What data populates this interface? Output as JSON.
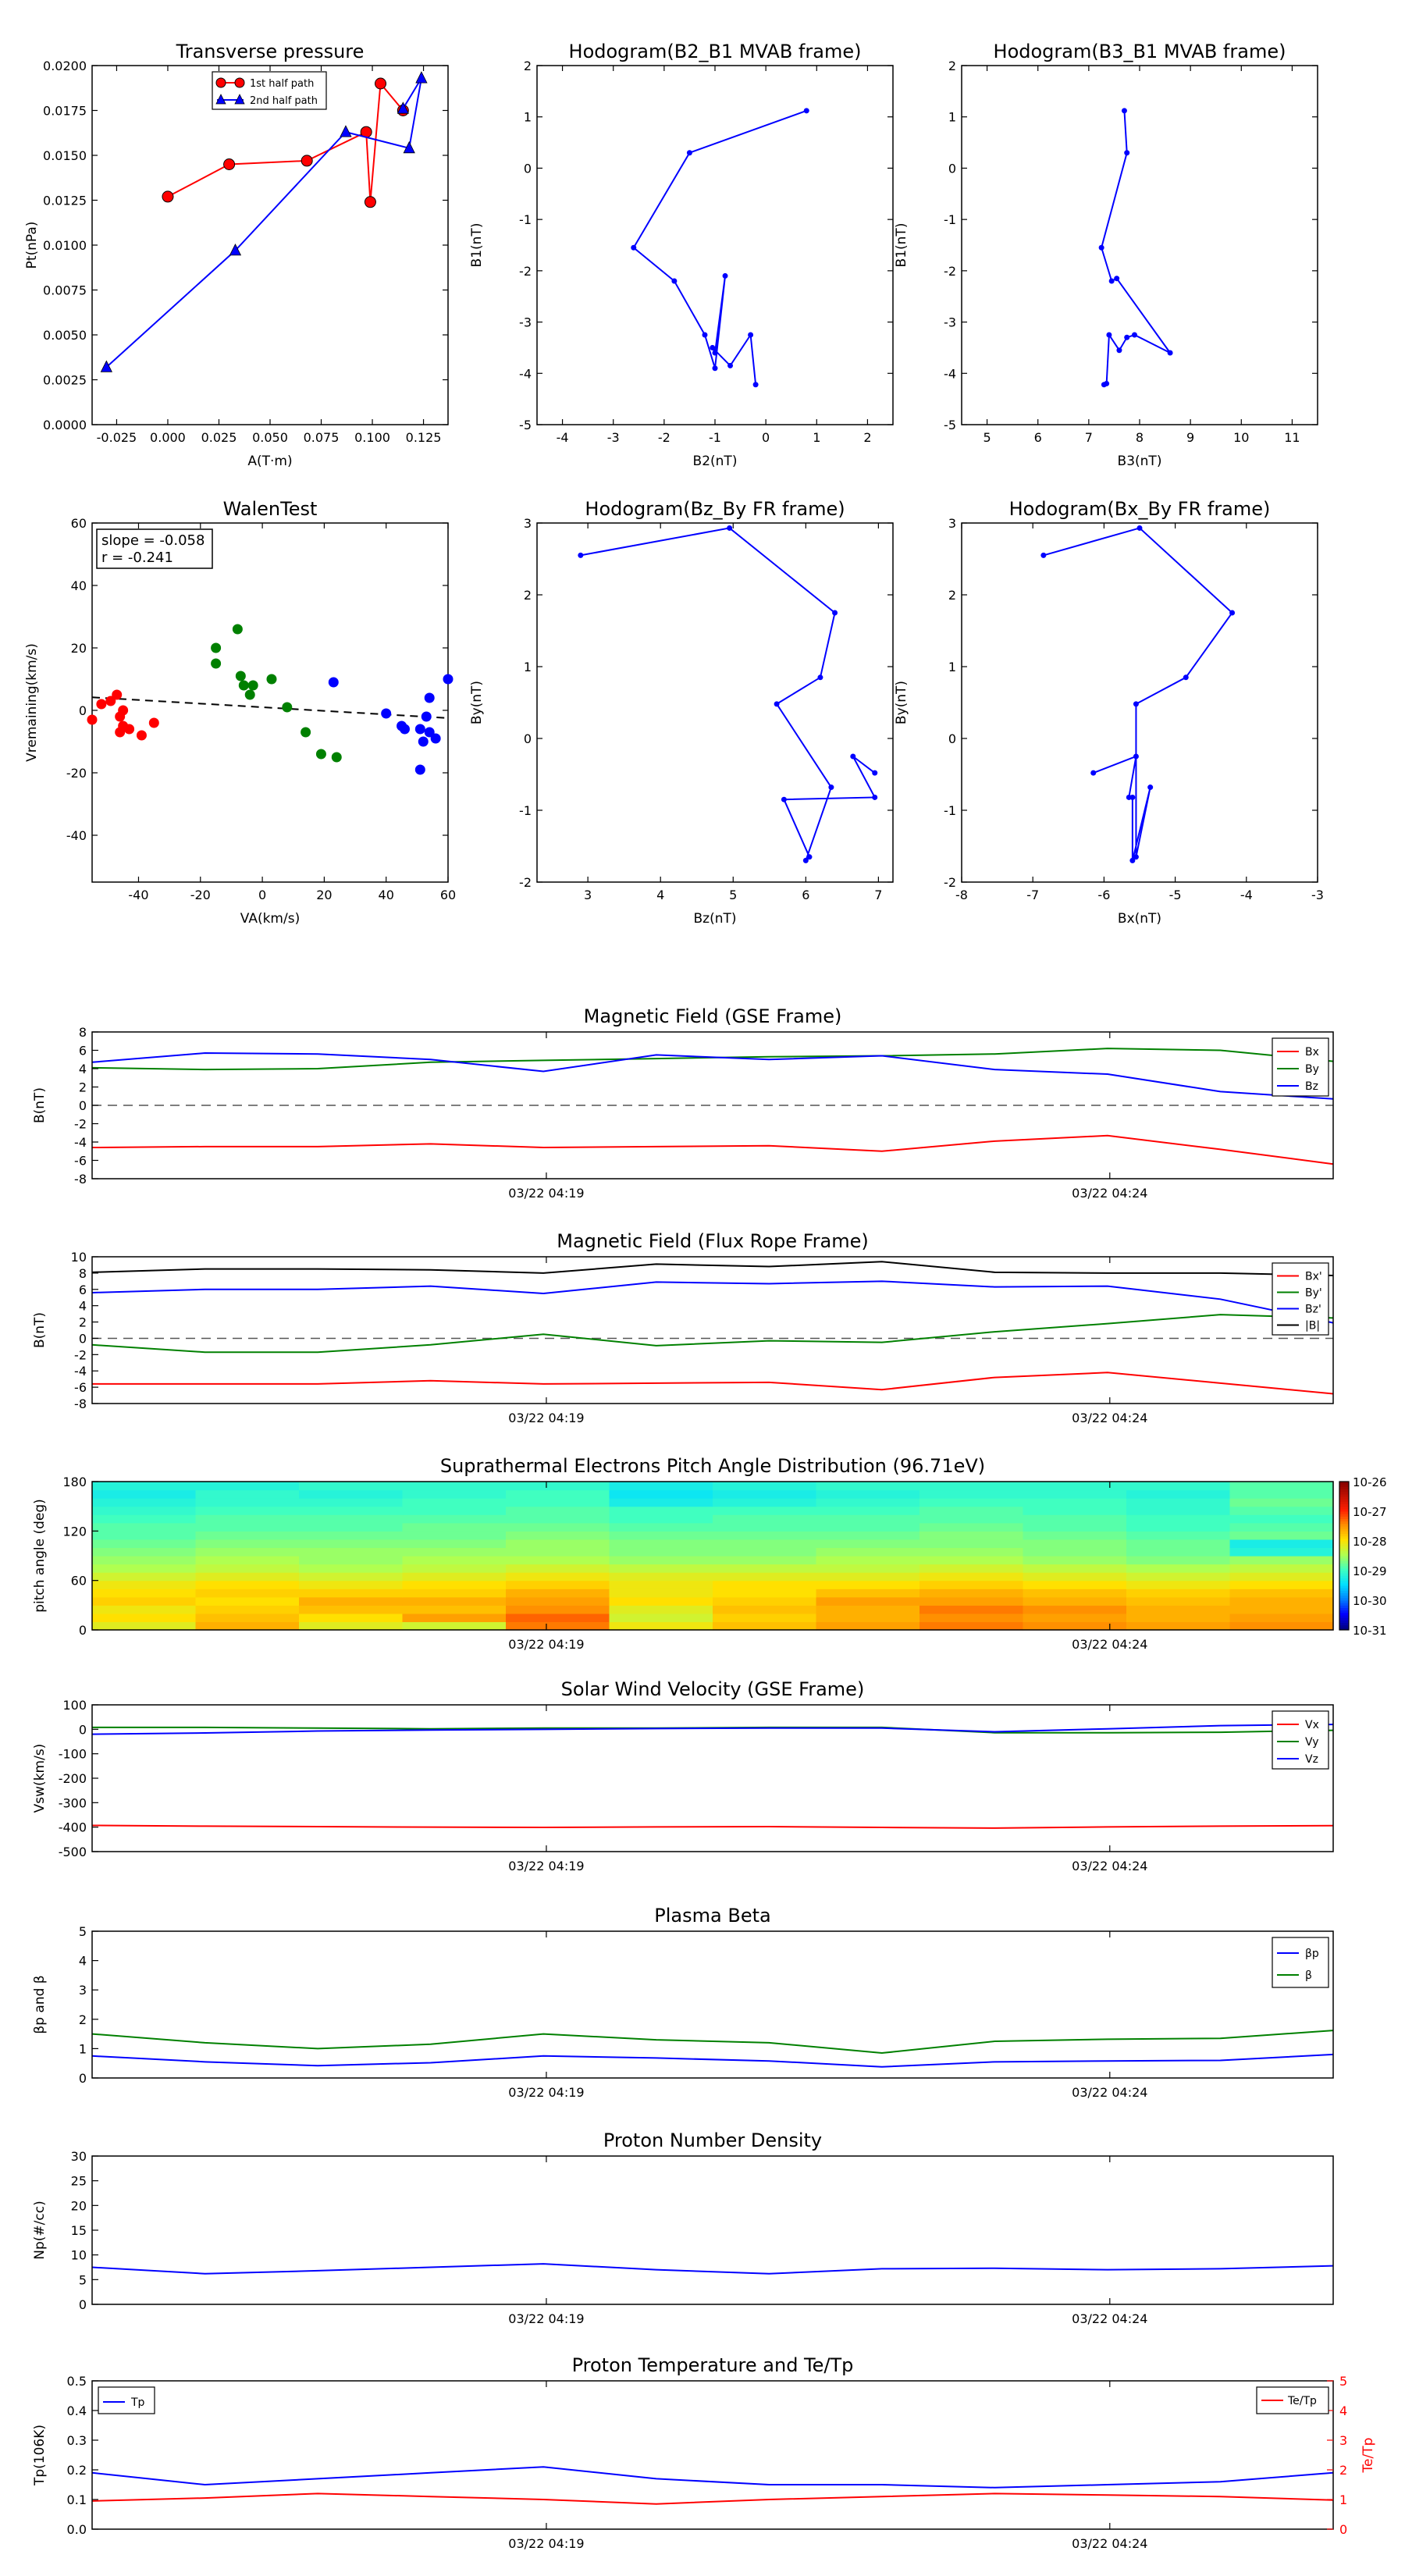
{
  "colors": {
    "red": "#ff0000",
    "green": "#008000",
    "blue": "#0000ff",
    "black": "#000000",
    "gray": "#555555"
  },
  "time_ticks": [
    "03/22 04:19",
    "03/22 04:24"
  ],
  "chart_data": [
    {
      "id": "tp",
      "type": "scatter",
      "title": "Transverse pressure",
      "xlabel": "A(T·m)",
      "ylabel": "Pt(nPa)",
      "xlim": [
        -0.037,
        0.137
      ],
      "ylim": [
        0,
        0.02
      ],
      "xticks": [
        "-0.025",
        "0.000",
        "0.025",
        "0.050",
        "0.075",
        "0.100",
        "0.125"
      ],
      "yticks": [
        "0.0000",
        "0.0025",
        "0.0050",
        "0.0075",
        "0.0100",
        "0.0125",
        "0.0150",
        "0.0175",
        "0.0200"
      ],
      "legend_position": "top-center",
      "series": [
        {
          "name": "1st half path",
          "color": "#ff0000",
          "marker": "circle",
          "x": [
            0.0,
            0.03,
            0.068,
            0.097,
            0.099,
            0.104,
            0.115
          ],
          "y": [
            0.0127,
            0.0145,
            0.0147,
            0.0163,
            0.0124,
            0.019,
            0.0175
          ]
        },
        {
          "name": "2nd half path",
          "color": "#0000ff",
          "marker": "triangle",
          "x": [
            -0.03,
            0.033,
            0.087,
            0.118,
            0.124,
            0.115
          ],
          "y": [
            0.0032,
            0.0097,
            0.0163,
            0.0154,
            0.0193,
            0.0176
          ]
        }
      ]
    },
    {
      "id": "h23",
      "type": "line",
      "title": "Hodogram(B2_B1 MVAB frame)",
      "xlabel": "B2(nT)",
      "ylabel": "B1(nT)",
      "xlim": [
        -4.5,
        2.5
      ],
      "ylim": [
        -5,
        2
      ],
      "xticks": [
        "-4",
        "-3",
        "-2",
        "-1",
        "0",
        "1",
        "2"
      ],
      "yticks": [
        "-5",
        "-4",
        "-3",
        "-2",
        "-1",
        "0",
        "1",
        "2"
      ],
      "x": [
        0.8,
        -1.5,
        -2.6,
        -1.8,
        -1.2,
        -1.0,
        -0.8,
        -1.0,
        -1.05,
        -0.7,
        -0.3,
        -0.2
      ],
      "y": [
        1.12,
        0.3,
        -1.55,
        -2.2,
        -3.25,
        -3.9,
        -2.1,
        -3.6,
        -3.5,
        -3.85,
        -3.25,
        -4.22
      ]
    },
    {
      "id": "h33",
      "type": "line",
      "title": "Hodogram(B3_B1 MVAB frame)",
      "xlabel": "B3(nT)",
      "ylabel": "B1(nT)",
      "xlim": [
        4.5,
        11.5
      ],
      "ylim": [
        -5,
        2
      ],
      "xticks": [
        "5",
        "6",
        "7",
        "8",
        "9",
        "10",
        "11"
      ],
      "yticks": [
        "-5",
        "-4",
        "-3",
        "-2",
        "-1",
        "0",
        "1",
        "2"
      ],
      "x": [
        7.7,
        7.75,
        7.25,
        7.45,
        7.55,
        8.6,
        7.9,
        7.75,
        7.6,
        7.4,
        7.35,
        7.3
      ],
      "y": [
        1.12,
        0.3,
        -1.55,
        -2.2,
        -2.15,
        -3.6,
        -3.25,
        -3.3,
        -3.55,
        -3.25,
        -4.2,
        -4.22
      ]
    },
    {
      "id": "walen",
      "type": "scatter",
      "title": "WalenTest",
      "xlabel": "VA(km/s)",
      "ylabel": "Vremaining(km/s)",
      "xlim": [
        -55,
        60
      ],
      "ylim": [
        -55,
        60
      ],
      "xticks": [
        "-40",
        "-20",
        "0",
        "20",
        "40",
        "60"
      ],
      "yticks": [
        "-40",
        "-20",
        "0",
        "20",
        "40",
        "60"
      ],
      "annotations": [
        "slope = -0.058",
        "r = -0.241"
      ],
      "fit": {
        "slope": -0.058,
        "intercept": 1.0
      },
      "series": [
        {
          "color": "#ff0000",
          "x": [
            -55,
            -52,
            -49,
            -47,
            -46,
            -45,
            -46,
            -45,
            -43,
            -39,
            -35
          ],
          "y": [
            -3,
            2,
            3,
            5,
            -2,
            -5,
            -7,
            0,
            -6,
            -8,
            -4
          ]
        },
        {
          "color": "#008000",
          "x": [
            -15,
            -15,
            -8,
            -7,
            -6,
            -4,
            -3,
            3,
            8,
            14,
            19,
            24
          ],
          "y": [
            20,
            15,
            26,
            11,
            8,
            5,
            8,
            10,
            1,
            -7,
            -14,
            -15
          ]
        },
        {
          "color": "#0000ff",
          "x": [
            23,
            40,
            45,
            46,
            51,
            51,
            52,
            53,
            54,
            54,
            56,
            60
          ],
          "y": [
            9,
            -1,
            -5,
            -6,
            -6,
            -19,
            -10,
            -2,
            -7,
            4,
            -9,
            10
          ]
        }
      ]
    },
    {
      "id": "fzby",
      "type": "line",
      "title": "Hodogram(Bz_By FR frame)",
      "xlabel": "Bz(nT)",
      "ylabel": "By(nT)",
      "xlim": [
        2.3,
        7.2
      ],
      "ylim": [
        -2,
        3
      ],
      "xticks": [
        "3",
        "4",
        "5",
        "6",
        "7"
      ],
      "yticks": [
        "-2",
        "-1",
        "0",
        "1",
        "2",
        "3"
      ],
      "x": [
        2.9,
        4.95,
        6.4,
        6.2,
        5.6,
        6.35,
        6.0,
        6.05,
        5.7,
        6.95,
        6.65,
        6.95
      ],
      "y": [
        2.55,
        2.93,
        1.75,
        0.85,
        0.48,
        -0.68,
        -1.7,
        -1.65,
        -0.85,
        -0.82,
        -0.25,
        -0.48
      ]
    },
    {
      "id": "fxby",
      "type": "line",
      "title": "Hodogram(Bx_By FR frame)",
      "xlabel": "Bx(nT)",
      "ylabel": "By(nT)",
      "xlim": [
        -8,
        -3
      ],
      "ylim": [
        -2,
        3
      ],
      "xticks": [
        "-8",
        "-7",
        "-6",
        "-5",
        "-4",
        "-3"
      ],
      "yticks": [
        "-2",
        "-1",
        "0",
        "1",
        "2",
        "3"
      ],
      "x": [
        -6.85,
        -5.5,
        -4.2,
        -4.85,
        -5.55,
        -5.55,
        -5.35,
        -5.6,
        -5.6,
        -5.65,
        -5.55,
        -6.15
      ],
      "y": [
        2.55,
        2.93,
        1.75,
        0.85,
        0.48,
        -1.65,
        -0.68,
        -1.7,
        -0.82,
        -0.82,
        -0.25,
        -0.48
      ]
    },
    {
      "id": "bgse",
      "type": "line",
      "title": "Magnetic Field (GSE Frame)",
      "ylabel": "B(nT)",
      "ylim": [
        -8,
        8
      ],
      "yticks": [
        "-8",
        "-6",
        "-4",
        "-2",
        "0",
        "2",
        "4",
        "6",
        "8"
      ],
      "zero_line": true,
      "legend_position": "upper-right",
      "series": [
        {
          "name": "Bx",
          "color": "#ff0000",
          "values": [
            -4.6,
            -4.5,
            -4.5,
            -4.2,
            -4.6,
            -4.5,
            -4.4,
            -5.0,
            -3.9,
            -3.3,
            -4.8,
            -6.4
          ]
        },
        {
          "name": "By",
          "color": "#008000",
          "values": [
            4.1,
            3.9,
            4.0,
            4.7,
            4.9,
            5.1,
            5.3,
            5.4,
            5.6,
            6.2,
            6.0,
            4.8
          ]
        },
        {
          "name": "Bz",
          "color": "#0000ff",
          "values": [
            4.7,
            5.7,
            5.6,
            5.0,
            3.7,
            5.5,
            5.0,
            5.4,
            3.9,
            3.4,
            1.5,
            0.7
          ]
        }
      ]
    },
    {
      "id": "bfr",
      "type": "line",
      "title": "Magnetic Field (Flux Rope Frame)",
      "ylabel": "B(nT)",
      "ylim": [
        -8,
        10
      ],
      "yticks": [
        "-8",
        "-6",
        "-4",
        "-2",
        "0",
        "2",
        "4",
        "6",
        "8",
        "10"
      ],
      "zero_line": true,
      "legend_position": "upper-right",
      "series": [
        {
          "name": "Bx'",
          "color": "#ff0000",
          "values": [
            -5.6,
            -5.6,
            -5.6,
            -5.2,
            -5.6,
            -5.5,
            -5.4,
            -6.3,
            -4.8,
            -4.2,
            -5.5,
            -6.8
          ]
        },
        {
          "name": "By'",
          "color": "#008000",
          "values": [
            -0.8,
            -1.7,
            -1.7,
            -0.8,
            0.5,
            -0.9,
            -0.3,
            -0.5,
            0.8,
            1.8,
            2.9,
            2.5
          ]
        },
        {
          "name": "Bz'",
          "color": "#0000ff",
          "values": [
            5.6,
            6.0,
            6.0,
            6.4,
            5.5,
            6.9,
            6.7,
            7.0,
            6.3,
            6.4,
            4.8,
            1.9
          ]
        },
        {
          "name": "|B|",
          "color": "#000000",
          "values": [
            8.1,
            8.5,
            8.5,
            8.4,
            8.0,
            9.1,
            8.8,
            9.4,
            8.1,
            8.0,
            8.0,
            7.7
          ]
        }
      ]
    },
    {
      "id": "pad",
      "type": "heatmap",
      "title": "Suprathermal Electrons Pitch Angle Distribution (96.71eV)",
      "ylabel": "pitch angle (deg)",
      "ylim": [
        0,
        180
      ],
      "yticks": [
        "0",
        "60",
        "120",
        "180"
      ],
      "colorbar": {
        "ticks": [
          "10-31",
          "10-30",
          "10-29",
          "10-28",
          "10-27",
          "10-26"
        ]
      },
      "rows_low_to_high_angle": true,
      "values": [
        [
          -28.2,
          -27.7,
          -28.2,
          -28.3,
          -27.4,
          -28.1,
          -27.8,
          -27.6,
          -27.4,
          -27.5,
          -27.6,
          -27.5
        ],
        [
          -28.0,
          -27.8,
          -28.0,
          -27.6,
          -27.3,
          -28.3,
          -27.9,
          -27.7,
          -27.5,
          -27.6,
          -27.7,
          -27.6
        ],
        [
          -28.1,
          -27.9,
          -27.8,
          -27.8,
          -27.5,
          -28.2,
          -27.8,
          -27.7,
          -27.4,
          -27.5,
          -27.7,
          -27.7
        ],
        [
          -27.9,
          -28.0,
          -27.7,
          -27.7,
          -27.6,
          -28.0,
          -27.9,
          -27.6,
          -27.6,
          -27.7,
          -27.8,
          -27.7
        ],
        [
          -28.0,
          -27.9,
          -27.9,
          -27.9,
          -27.7,
          -28.1,
          -28.0,
          -27.8,
          -27.7,
          -27.8,
          -27.9,
          -27.8
        ],
        [
          -28.1,
          -28.0,
          -28.1,
          -28.0,
          -27.9,
          -28.1,
          -28.0,
          -28.0,
          -27.9,
          -28.0,
          -28.1,
          -28.0
        ],
        [
          -28.3,
          -28.2,
          -28.3,
          -28.2,
          -28.1,
          -28.2,
          -28.2,
          -28.2,
          -28.1,
          -28.2,
          -28.3,
          -28.2
        ],
        [
          -28.5,
          -28.4,
          -28.5,
          -28.4,
          -28.3,
          -28.4,
          -28.4,
          -28.4,
          -28.3,
          -28.4,
          -28.5,
          -28.4
        ],
        [
          -28.6,
          -28.5,
          -28.6,
          -28.5,
          -28.5,
          -28.6,
          -28.6,
          -28.5,
          -28.5,
          -28.6,
          -28.7,
          -28.6
        ],
        [
          -28.7,
          -28.6,
          -28.6,
          -28.6,
          -28.6,
          -28.7,
          -28.7,
          -28.6,
          -28.6,
          -28.7,
          -28.8,
          -29.2
        ],
        [
          -28.8,
          -28.7,
          -28.7,
          -28.7,
          -28.6,
          -28.7,
          -28.7,
          -28.7,
          -28.7,
          -28.7,
          -28.8,
          -29.3
        ],
        [
          -28.9,
          -28.8,
          -28.8,
          -28.8,
          -28.7,
          -28.8,
          -28.8,
          -28.8,
          -28.7,
          -28.8,
          -28.9,
          -28.8
        ],
        [
          -28.9,
          -28.9,
          -28.9,
          -28.8,
          -28.8,
          -28.9,
          -28.9,
          -28.9,
          -28.8,
          -28.9,
          -29.0,
          -28.9
        ],
        [
          -29.0,
          -28.9,
          -28.9,
          -28.9,
          -28.9,
          -29.0,
          -28.9,
          -28.9,
          -28.9,
          -28.9,
          -29.0,
          -29.0
        ],
        [
          -29.1,
          -29.0,
          -29.0,
          -29.0,
          -28.9,
          -29.0,
          -29.0,
          -29.0,
          -28.9,
          -29.0,
          -29.1,
          -28.9
        ],
        [
          -29.2,
          -29.1,
          -29.1,
          -29.0,
          -29.0,
          -29.3,
          -29.2,
          -29.1,
          -29.0,
          -29.0,
          -29.1,
          -28.8
        ],
        [
          -29.3,
          -29.1,
          -29.2,
          -29.1,
          -29.0,
          -29.4,
          -29.3,
          -29.2,
          -29.1,
          -29.1,
          -29.2,
          -28.9
        ],
        [
          -29.2,
          -29.2,
          -29.1,
          -29.1,
          -29.1,
          -29.3,
          -29.2,
          -29.1,
          -29.1,
          -29.1,
          -29.1,
          -28.9
        ]
      ]
    },
    {
      "id": "vsw",
      "type": "line",
      "title": "Solar Wind Velocity (GSE Frame)",
      "ylabel": "Vsw(km/s)",
      "ylim": [
        -500,
        100
      ],
      "yticks": [
        "-500",
        "-400",
        "-300",
        "-200",
        "-100",
        "0",
        "100"
      ],
      "legend_position": "upper-right",
      "series": [
        {
          "name": "Vx",
          "color": "#ff0000",
          "values": [
            -393,
            -396,
            -398,
            -400,
            -401,
            -399,
            -398,
            -401,
            -404,
            -399,
            -396,
            -394
          ]
        },
        {
          "name": "Vy",
          "color": "#008000",
          "values": [
            8,
            8,
            5,
            2,
            5,
            5,
            8,
            8,
            -14,
            -14,
            -12,
            -4
          ]
        },
        {
          "name": "Vz",
          "color": "#0000ff",
          "values": [
            -20,
            -15,
            -7,
            -3,
            0,
            3,
            5,
            5,
            -10,
            2,
            15,
            20
          ]
        }
      ]
    },
    {
      "id": "beta",
      "type": "line",
      "title": "Plasma Beta",
      "ylabel": "βp and β",
      "ylim": [
        0,
        5
      ],
      "yticks": [
        "0",
        "1",
        "2",
        "3",
        "4",
        "5"
      ],
      "legend_position": "upper-right",
      "series": [
        {
          "name": "βp",
          "color": "#0000ff",
          "values": [
            0.75,
            0.55,
            0.42,
            0.52,
            0.75,
            0.68,
            0.58,
            0.38,
            0.55,
            0.58,
            0.6,
            0.8
          ]
        },
        {
          "name": "β",
          "color": "#008000",
          "values": [
            1.5,
            1.2,
            1.0,
            1.15,
            1.5,
            1.3,
            1.2,
            0.85,
            1.25,
            1.32,
            1.35,
            1.62
          ]
        }
      ]
    },
    {
      "id": "np",
      "type": "line",
      "title": "Proton Number Density",
      "ylabel": "Np(#/cc)",
      "ylim": [
        0,
        30
      ],
      "yticks": [
        "0",
        "5",
        "10",
        "15",
        "20",
        "25",
        "30"
      ],
      "series": [
        {
          "name": "Np",
          "color": "#0000ff",
          "values": [
            7.5,
            6.2,
            6.8,
            7.5,
            8.2,
            7.0,
            6.2,
            7.2,
            7.3,
            7.0,
            7.2,
            7.8
          ]
        }
      ]
    },
    {
      "id": "temp",
      "type": "line",
      "title": "Proton Temperature and Te/Tp",
      "ylabel": "Tp(106K)",
      "ylabel_right": "Te/Tp",
      "ylim": [
        0,
        0.5
      ],
      "yticks": [
        "0.0",
        "0.1",
        "0.2",
        "0.3",
        "0.4",
        "0.5"
      ],
      "ylim_right": [
        0,
        5
      ],
      "yticks_right": [
        "0",
        "1",
        "2",
        "3",
        "4",
        "5"
      ],
      "series": [
        {
          "name": "Tp",
          "color": "#0000ff",
          "axis": "left",
          "values": [
            0.19,
            0.15,
            0.17,
            0.19,
            0.21,
            0.17,
            0.15,
            0.15,
            0.14,
            0.15,
            0.16,
            0.19
          ]
        },
        {
          "name": "Te/Tp",
          "color": "#ff0000",
          "axis": "right",
          "values": [
            0.95,
            1.05,
            1.2,
            1.1,
            1.0,
            0.85,
            1.0,
            1.1,
            1.2,
            1.15,
            1.1,
            0.98
          ]
        }
      ]
    }
  ]
}
